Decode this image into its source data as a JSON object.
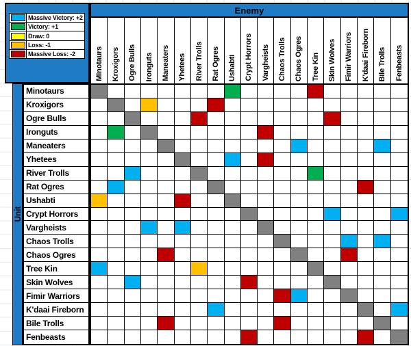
{
  "sheet": {
    "enemy_header": "Enemy",
    "unit_header": "Unit",
    "header_fill": "#1E7BC4"
  },
  "legend": {
    "items": [
      {
        "label": "Massive Victory: +2",
        "value": 2,
        "color": "#00B0F0"
      },
      {
        "label": "Victory: +1",
        "value": 1,
        "color": "#00B050"
      },
      {
        "label": "Draw: 0",
        "value": 0,
        "color": "#FFFF00"
      },
      {
        "label": "Loss: -1",
        "value": -1,
        "color": "#FFC000"
      },
      {
        "label": "Massive Loss: -2",
        "value": -2,
        "color": "#C00000"
      }
    ]
  },
  "chart_data": {
    "type": "heatmap",
    "x_title": "Enemy",
    "y_title": "Unit",
    "labels": [
      "Minotaurs",
      "Kroxigors",
      "Ogre Bulls",
      "Ironguts",
      "Maneaters",
      "Yhetees",
      "River Trolls",
      "Rat Ogres",
      "Ushabti",
      "Crypt Horrors",
      "Vargheists",
      "Chaos Trolls",
      "Chaos Ogres",
      "Tree Kin",
      "Skin Wolves",
      "Fimir Warriors",
      "K'daai Fireborn",
      "Bile Trolls",
      "Fenbeasts"
    ],
    "value_colors": {
      "2": "#00B0F0",
      "1": "#00B050",
      "0": "#FFFF00",
      "-1": "#FFC000",
      "-2": "#C00000",
      "S": "#808080"
    },
    "value_meanings": {
      "2": "Massive Victory",
      "1": "Victory",
      "0": "Draw",
      "-1": "Loss",
      "-2": "Massive Loss",
      "S": "self matchup (gray diagonal)",
      "null": "unrated (blank)"
    },
    "legend_position": "top-left",
    "matrix": [
      [
        "S",
        null,
        null,
        null,
        null,
        null,
        null,
        null,
        1,
        null,
        null,
        null,
        null,
        -2,
        null,
        null,
        null,
        null,
        null
      ],
      [
        null,
        "S",
        null,
        -1,
        null,
        null,
        null,
        -2,
        null,
        null,
        null,
        null,
        null,
        null,
        null,
        null,
        null,
        null,
        null
      ],
      [
        null,
        null,
        "S",
        null,
        null,
        null,
        -2,
        null,
        null,
        null,
        null,
        null,
        null,
        null,
        -2,
        null,
        null,
        null,
        null
      ],
      [
        null,
        1,
        null,
        "S",
        null,
        null,
        null,
        null,
        null,
        null,
        -2,
        null,
        null,
        null,
        null,
        null,
        null,
        null,
        null
      ],
      [
        null,
        null,
        null,
        null,
        "S",
        null,
        null,
        null,
        null,
        null,
        null,
        null,
        2,
        null,
        null,
        null,
        null,
        2,
        null
      ],
      [
        null,
        null,
        null,
        null,
        null,
        "S",
        null,
        null,
        2,
        null,
        -2,
        null,
        null,
        null,
        null,
        null,
        null,
        null,
        null
      ],
      [
        null,
        null,
        2,
        null,
        null,
        null,
        "S",
        null,
        null,
        null,
        null,
        null,
        null,
        1,
        null,
        null,
        null,
        null,
        null
      ],
      [
        null,
        2,
        null,
        null,
        null,
        null,
        null,
        "S",
        null,
        null,
        null,
        null,
        null,
        null,
        null,
        null,
        -2,
        null,
        null
      ],
      [
        -1,
        null,
        null,
        null,
        null,
        -2,
        null,
        null,
        "S",
        null,
        null,
        null,
        null,
        null,
        null,
        null,
        null,
        null,
        null
      ],
      [
        null,
        null,
        null,
        null,
        null,
        null,
        null,
        null,
        null,
        "S",
        null,
        null,
        null,
        null,
        2,
        null,
        null,
        null,
        2
      ],
      [
        null,
        null,
        null,
        2,
        null,
        2,
        null,
        null,
        null,
        null,
        "S",
        null,
        null,
        null,
        null,
        null,
        null,
        null,
        null
      ],
      [
        null,
        null,
        null,
        null,
        null,
        null,
        null,
        null,
        null,
        null,
        null,
        "S",
        null,
        null,
        null,
        2,
        null,
        2,
        null
      ],
      [
        null,
        null,
        null,
        null,
        -2,
        null,
        null,
        null,
        null,
        null,
        null,
        null,
        "S",
        null,
        null,
        -2,
        null,
        null,
        null
      ],
      [
        2,
        null,
        null,
        null,
        null,
        null,
        -1,
        null,
        null,
        null,
        null,
        null,
        null,
        "S",
        null,
        null,
        null,
        null,
        null
      ],
      [
        null,
        null,
        2,
        null,
        null,
        null,
        null,
        null,
        null,
        -2,
        null,
        null,
        null,
        null,
        "S",
        null,
        null,
        null,
        null
      ],
      [
        null,
        null,
        null,
        null,
        null,
        null,
        null,
        null,
        null,
        null,
        null,
        -2,
        2,
        null,
        null,
        "S",
        null,
        null,
        null
      ],
      [
        null,
        null,
        null,
        null,
        null,
        null,
        null,
        2,
        null,
        null,
        null,
        null,
        null,
        null,
        null,
        null,
        "S",
        null,
        2
      ],
      [
        null,
        null,
        null,
        null,
        -2,
        null,
        null,
        null,
        null,
        null,
        null,
        -2,
        null,
        null,
        null,
        null,
        null,
        "S",
        null
      ],
      [
        null,
        null,
        null,
        null,
        null,
        null,
        null,
        null,
        null,
        -2,
        null,
        null,
        null,
        null,
        null,
        null,
        -2,
        null,
        "S"
      ]
    ]
  }
}
